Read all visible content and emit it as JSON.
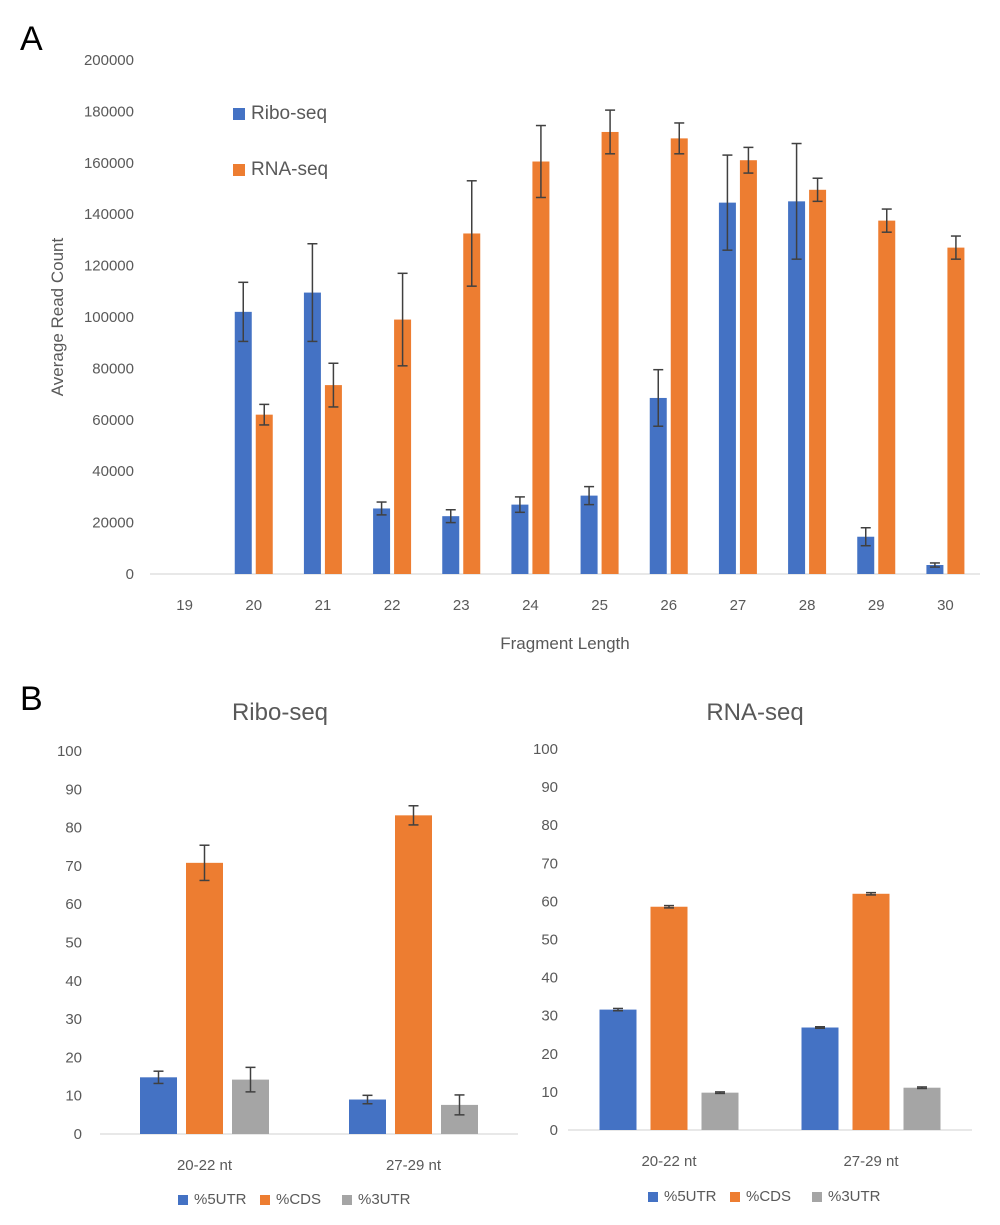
{
  "panels": {
    "a_label": "A",
    "b_label": "B"
  },
  "colors": {
    "blue": "#4472C4",
    "orange": "#ED7D31",
    "gray": "#A5A5A5",
    "axis": "#D9D9D9",
    "error": "#404040"
  },
  "chart_data": [
    {
      "type": "bar",
      "title": "",
      "xlabel": "Fragment Length",
      "ylabel": "Average Read Count",
      "ylim": [
        0,
        200000
      ],
      "yticks": [
        "0",
        "20000",
        "40000",
        "60000",
        "80000",
        "100000",
        "120000",
        "140000",
        "160000",
        "180000",
        "200000"
      ],
      "categories": [
        "19",
        "20",
        "21",
        "22",
        "23",
        "24",
        "25",
        "26",
        "27",
        "28",
        "29",
        "30"
      ],
      "legend_position": "top-left",
      "series": [
        {
          "name": "Ribo-seq",
          "color": "#4472C4",
          "values": [
            0,
            102000,
            109500,
            25500,
            22500,
            27000,
            30500,
            68500,
            144500,
            145000,
            14500,
            3500
          ],
          "errors": [
            0,
            11500,
            19000,
            2500,
            2500,
            3000,
            3500,
            11000,
            18500,
            22500,
            3500,
            800
          ]
        },
        {
          "name": "RNA-seq",
          "color": "#ED7D31",
          "values": [
            0,
            62000,
            73500,
            99000,
            132500,
            160500,
            172000,
            169500,
            161000,
            149500,
            137500,
            127000
          ],
          "errors": [
            0,
            4000,
            8500,
            18000,
            20500,
            14000,
            8500,
            6000,
            5000,
            4500,
            4500,
            4500
          ]
        }
      ]
    },
    {
      "type": "bar",
      "title": "Ribo-seq",
      "xlabel": "",
      "ylabel": "",
      "ylim": [
        0,
        100
      ],
      "yticks": [
        "0",
        "10",
        "20",
        "30",
        "40",
        "50",
        "60",
        "70",
        "80",
        "90",
        "100"
      ],
      "categories": [
        "20-22 nt",
        "27-29 nt"
      ],
      "legend_position": "bottom",
      "series": [
        {
          "name": "%5UTR",
          "color": "#4472C4",
          "values": [
            14.8,
            9.0
          ],
          "errors": [
            1.6,
            1.1
          ]
        },
        {
          "name": "%CDS",
          "color": "#ED7D31",
          "values": [
            70.8,
            83.2
          ],
          "errors": [
            4.6,
            2.5
          ]
        },
        {
          "name": "%3UTR",
          "color": "#A5A5A5",
          "values": [
            14.2,
            7.6
          ],
          "errors": [
            3.2,
            2.6
          ]
        }
      ]
    },
    {
      "type": "bar",
      "title": "RNA-seq",
      "xlabel": "",
      "ylabel": "",
      "ylim": [
        0,
        100
      ],
      "yticks": [
        "0",
        "10",
        "20",
        "30",
        "40",
        "50",
        "60",
        "70",
        "80",
        "90",
        "100"
      ],
      "categories": [
        "20-22 nt",
        "27-29 nt"
      ],
      "legend_position": "bottom",
      "series": [
        {
          "name": "%5UTR",
          "color": "#4472C4",
          "values": [
            31.6,
            26.9
          ],
          "errors": [
            0.3,
            0.2
          ]
        },
        {
          "name": "%CDS",
          "color": "#ED7D31",
          "values": [
            58.6,
            62.0
          ],
          "errors": [
            0.3,
            0.3
          ]
        },
        {
          "name": "%3UTR",
          "color": "#A5A5A5",
          "values": [
            9.8,
            11.1
          ],
          "errors": [
            0.2,
            0.2
          ]
        }
      ]
    }
  ]
}
